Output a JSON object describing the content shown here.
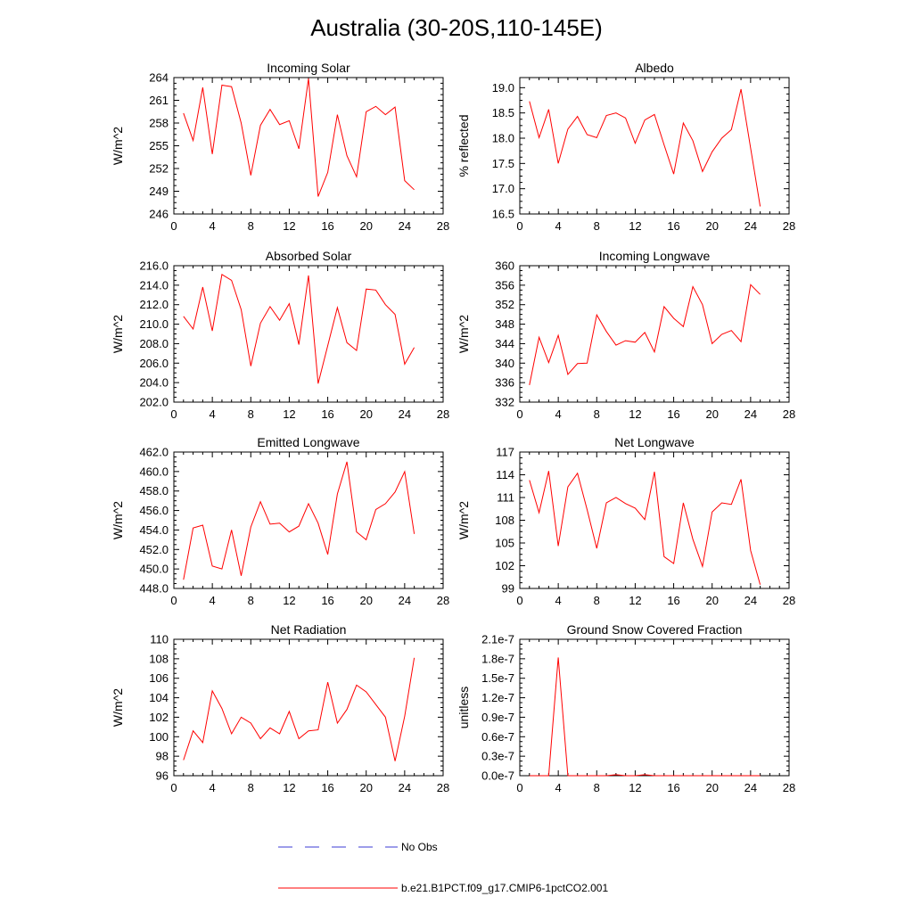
{
  "figure": {
    "title": "Australia (30-20S,110-145E)"
  },
  "colors": {
    "model": "#ff0000",
    "obs": "#3b3bd6",
    "axis": "#000000"
  },
  "legend": {
    "entries": [
      {
        "label": "No Obs",
        "style": "dashed",
        "color": "#3b3bd6"
      },
      {
        "label": "b.e21.B1PCT.f09_g17.CMIP6-1pctCO2.001",
        "style": "solid",
        "color": "#ff0000"
      }
    ]
  },
  "chart_data": [
    {
      "type": "line",
      "title": "Incoming Solar",
      "ylabel": "W/m^2",
      "xlim": [
        0,
        28
      ],
      "xticks": [
        "0",
        "4",
        "8",
        "12",
        "16",
        "20",
        "24",
        "28"
      ],
      "ylim": [
        246,
        264
      ],
      "yticks": [
        "246",
        "249",
        "252",
        "255",
        "258",
        "261",
        "264"
      ],
      "series": [
        {
          "name": "b.e21.B1PCT.f09_g17.CMIP6-1pctCO2.001",
          "x": [
            1,
            2,
            3,
            4,
            5,
            6,
            7,
            8,
            9,
            10,
            11,
            12,
            13,
            14,
            15,
            16,
            17,
            18,
            19,
            20,
            21,
            22,
            23,
            24,
            25
          ],
          "values": [
            259.3,
            255.7,
            262.7,
            253.9,
            263.0,
            262.8,
            258.0,
            251.1,
            257.7,
            259.8,
            257.8,
            258.3,
            254.6,
            263.9,
            248.3,
            251.5,
            259.1,
            253.7,
            250.9,
            259.5,
            260.2,
            259.1,
            260.1,
            250.4,
            249.2
          ]
        }
      ]
    },
    {
      "type": "line",
      "title": "Albedo",
      "ylabel": "% reflected",
      "xlim": [
        0,
        28
      ],
      "xticks": [
        "0",
        "4",
        "8",
        "12",
        "16",
        "20",
        "24",
        "28"
      ],
      "ylim": [
        16.5,
        19.2
      ],
      "yticks": [
        "16.5",
        "17.0",
        "17.5",
        "18.0",
        "18.5",
        "19.0"
      ],
      "ytick_values": [
        16.5,
        17.0,
        17.5,
        18.0,
        18.5,
        19.0
      ],
      "series": [
        {
          "name": "b.e21.B1PCT.f09_g17.CMIP6-1pctCO2.001",
          "x": [
            1,
            2,
            3,
            4,
            5,
            6,
            7,
            8,
            9,
            10,
            11,
            12,
            13,
            14,
            15,
            16,
            17,
            18,
            19,
            20,
            21,
            22,
            23,
            24,
            25
          ],
          "values": [
            18.73,
            18.01,
            18.57,
            17.5,
            18.18,
            18.43,
            18.07,
            18.01,
            18.45,
            18.5,
            18.4,
            17.9,
            18.36,
            18.47,
            17.87,
            17.29,
            18.3,
            17.95,
            17.34,
            17.73,
            18.0,
            18.17,
            18.97,
            17.8,
            16.65
          ]
        }
      ]
    },
    {
      "type": "line",
      "title": "Absorbed Solar",
      "ylabel": "W/m^2",
      "xlim": [
        0,
        28
      ],
      "xticks": [
        "0",
        "4",
        "8",
        "12",
        "16",
        "20",
        "24",
        "28"
      ],
      "ylim": [
        202,
        216
      ],
      "yticks": [
        "202.0",
        "204.0",
        "206.0",
        "208.0",
        "210.0",
        "212.0",
        "214.0",
        "216.0"
      ],
      "series": [
        {
          "name": "b.e21.B1PCT.f09_g17.CMIP6-1pctCO2.001",
          "x": [
            1,
            2,
            3,
            4,
            5,
            6,
            7,
            8,
            9,
            10,
            11,
            12,
            13,
            14,
            15,
            16,
            17,
            18,
            19,
            20,
            21,
            22,
            23,
            24,
            25
          ],
          "values": [
            210.8,
            209.5,
            213.8,
            209.3,
            215.1,
            214.5,
            211.5,
            205.7,
            210.1,
            211.8,
            210.4,
            212.1,
            207.9,
            215.0,
            203.9,
            207.8,
            211.7,
            208.1,
            207.3,
            213.6,
            213.5,
            212.0,
            211.0,
            205.9,
            207.6
          ]
        }
      ]
    },
    {
      "type": "line",
      "title": "Incoming Longwave",
      "ylabel": "W/m^2",
      "xlim": [
        0,
        28
      ],
      "xticks": [
        "0",
        "4",
        "8",
        "12",
        "16",
        "20",
        "24",
        "28"
      ],
      "ylim": [
        332,
        360
      ],
      "yticks": [
        "332",
        "336",
        "340",
        "344",
        "348",
        "352",
        "356",
        "360"
      ],
      "series": [
        {
          "name": "b.e21.B1PCT.f09_g17.CMIP6-1pctCO2.001",
          "x": [
            1,
            2,
            3,
            4,
            5,
            6,
            7,
            8,
            9,
            10,
            11,
            12,
            13,
            14,
            15,
            16,
            17,
            18,
            19,
            20,
            21,
            22,
            23,
            24,
            25
          ],
          "values": [
            335.5,
            345.3,
            340.1,
            345.7,
            337.7,
            339.9,
            340.0,
            349.9,
            346.5,
            343.7,
            344.6,
            344.3,
            346.3,
            342.3,
            351.6,
            349.2,
            347.5,
            355.7,
            352.0,
            344.0,
            345.9,
            346.7,
            344.4,
            356.1,
            354.1
          ]
        }
      ]
    },
    {
      "type": "line",
      "title": "Emitted Longwave",
      "ylabel": "W/m^2",
      "xlim": [
        0,
        28
      ],
      "xticks": [
        "0",
        "4",
        "8",
        "12",
        "16",
        "20",
        "24",
        "28"
      ],
      "ylim": [
        448,
        462
      ],
      "yticks": [
        "448.0",
        "450.0",
        "452.0",
        "454.0",
        "456.0",
        "458.0",
        "460.0",
        "462.0"
      ],
      "series": [
        {
          "name": "b.e21.B1PCT.f09_g17.CMIP6-1pctCO2.001",
          "x": [
            1,
            2,
            3,
            4,
            5,
            6,
            7,
            8,
            9,
            10,
            11,
            12,
            13,
            14,
            15,
            16,
            17,
            18,
            19,
            20,
            21,
            22,
            23,
            24,
            25
          ],
          "values": [
            448.9,
            454.2,
            454.5,
            450.3,
            450.0,
            454.0,
            449.3,
            454.3,
            456.9,
            454.6,
            454.7,
            453.8,
            454.4,
            456.7,
            454.7,
            451.5,
            457.7,
            461.0,
            453.8,
            453.0,
            456.1,
            456.7,
            457.9,
            460.0,
            453.6
          ]
        }
      ]
    },
    {
      "type": "line",
      "title": "Net Longwave",
      "ylabel": "W/m^2",
      "xlim": [
        0,
        28
      ],
      "xticks": [
        "0",
        "4",
        "8",
        "12",
        "16",
        "20",
        "24",
        "28"
      ],
      "ylim": [
        99,
        117
      ],
      "yticks": [
        "99",
        "102",
        "105",
        "108",
        "111",
        "114",
        "117"
      ],
      "series": [
        {
          "name": "b.e21.B1PCT.f09_g17.CMIP6-1pctCO2.001",
          "x": [
            1,
            2,
            3,
            4,
            5,
            6,
            7,
            8,
            9,
            10,
            11,
            12,
            13,
            14,
            15,
            16,
            17,
            18,
            19,
            20,
            21,
            22,
            23,
            24,
            25
          ],
          "values": [
            113.3,
            109.0,
            114.5,
            104.6,
            112.4,
            114.2,
            109.4,
            104.3,
            110.3,
            111.0,
            110.2,
            109.6,
            108.1,
            114.4,
            103.2,
            102.3,
            110.3,
            105.5,
            101.9,
            109.1,
            110.3,
            110.1,
            113.4,
            104.0,
            99.5
          ]
        }
      ]
    },
    {
      "type": "line",
      "title": "Net Radiation",
      "ylabel": "W/m^2",
      "xlim": [
        0,
        28
      ],
      "xticks": [
        "0",
        "4",
        "8",
        "12",
        "16",
        "20",
        "24",
        "28"
      ],
      "ylim": [
        96,
        110
      ],
      "yticks": [
        "96",
        "98",
        "100",
        "102",
        "104",
        "106",
        "108",
        "110"
      ],
      "series": [
        {
          "name": "b.e21.B1PCT.f09_g17.CMIP6-1pctCO2.001",
          "x": [
            1,
            2,
            3,
            4,
            5,
            6,
            7,
            8,
            9,
            10,
            11,
            12,
            13,
            14,
            15,
            16,
            17,
            18,
            19,
            20,
            21,
            22,
            23,
            24,
            25
          ],
          "values": [
            97.6,
            100.6,
            99.4,
            104.7,
            102.9,
            100.3,
            102.0,
            101.4,
            99.8,
            100.9,
            100.3,
            102.6,
            99.8,
            100.6,
            100.7,
            105.6,
            101.4,
            102.8,
            105.3,
            104.6,
            103.3,
            102.0,
            97.5,
            102.1,
            108.1
          ]
        }
      ]
    },
    {
      "type": "line",
      "title": "Ground Snow Covered Fraction",
      "ylabel": "unitless",
      "xlim": [
        0,
        28
      ],
      "xticks": [
        "0",
        "4",
        "8",
        "12",
        "16",
        "20",
        "24",
        "28"
      ],
      "ylim": [
        0,
        2.1e-07
      ],
      "yticks": [
        "0.0e-7",
        "0.3e-7",
        "0.6e-7",
        "0.9e-7",
        "1.2e-7",
        "1.5e-7",
        "1.8e-7",
        "2.1e-7"
      ],
      "ytick_values": [
        0,
        3e-08,
        6e-08,
        9e-08,
        1.2e-07,
        1.5e-07,
        1.8e-07,
        2.1e-07
      ],
      "series": [
        {
          "name": "b.e21.B1PCT.f09_g17.CMIP6-1pctCO2.001",
          "x": [
            1,
            2,
            3,
            4,
            5,
            6,
            7,
            8,
            9,
            10,
            11,
            12,
            13,
            14,
            15,
            16,
            17,
            18,
            19,
            20,
            21,
            22,
            23,
            24,
            25
          ],
          "values": [
            0,
            0,
            0,
            1.82e-07,
            0,
            0,
            0,
            0,
            0,
            1.5e-09,
            0,
            0,
            1.5e-09,
            0,
            0,
            0,
            0,
            0,
            0,
            0,
            0,
            0,
            0,
            0,
            0
          ]
        }
      ]
    }
  ]
}
